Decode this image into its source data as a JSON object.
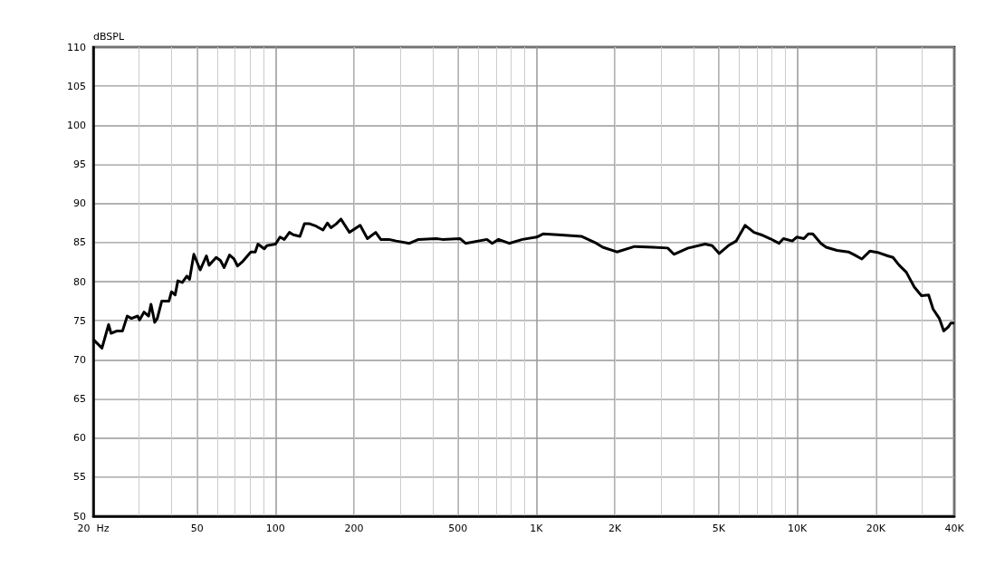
{
  "chart_data": {
    "type": "line",
    "ylabel": "dBSPL",
    "log": "x",
    "grid": true,
    "x": [
      20,
      21.6,
      22.9,
      23.4,
      24.7,
      25.9,
      27.0,
      28.0,
      29.6,
      30.1,
      31.3,
      32.6,
      33.3,
      34.4,
      35.2,
      36.6,
      39.0,
      39.9,
      41.2,
      42.2,
      43.9,
      45.7,
      46.8,
      48.6,
      51.4,
      54.3,
      55.6,
      59.2,
      61.5,
      63.5,
      66.6,
      69.3,
      71.5,
      74.9,
      80.4,
      83.6,
      85.6,
      90.5,
      92.6,
      100,
      104,
      108,
      113,
      117,
      124,
      129,
      135,
      143,
      152,
      158,
      163,
      171,
      178,
      192,
      211,
      225,
      242,
      253,
      272,
      290,
      326,
      353,
      413,
      436,
      510,
      535,
      646,
      677,
      716,
      786,
      884,
      1003,
      1060,
      1211,
      1486,
      1699,
      1796,
      2035,
      2381,
      2788,
      3186,
      3366,
      3817,
      4431,
      4720,
      5024,
      5438,
      5836,
      6313,
      6829,
      7273,
      7866,
      8511,
      8851,
      9573,
      9955,
      10603,
      11029,
      11470,
      12317,
      12910,
      14190,
      15717,
      16605,
      17683,
      18976,
      20530,
      22206,
      23279,
      24592,
      26187,
      28109,
      29937,
      31884,
      33163,
      35042,
      36446,
      37900,
      38800,
      40000
    ],
    "series": [
      {
        "color": "#000000",
        "values": [
          72.6,
          71.5,
          74.5,
          73.4,
          73.7,
          73.7,
          75.6,
          75.3,
          75.6,
          75.1,
          76.1,
          75.6,
          77.1,
          74.8,
          75.3,
          77.5,
          77.5,
          78.7,
          78.3,
          80.1,
          79.9,
          80.7,
          80.3,
          83.5,
          81.5,
          83.3,
          82.1,
          83.1,
          82.7,
          81.8,
          83.4,
          82.9,
          82.0,
          82.6,
          83.8,
          83.8,
          84.8,
          84.2,
          84.6,
          84.8,
          85.7,
          85.4,
          86.3,
          86.0,
          85.8,
          87.4,
          87.4,
          87.1,
          86.6,
          87.5,
          86.9,
          87.4,
          88.0,
          86.3,
          87.2,
          85.5,
          86.3,
          85.4,
          85.4,
          85.2,
          84.9,
          85.4,
          85.5,
          85.4,
          85.5,
          84.9,
          85.4,
          84.9,
          85.4,
          84.9,
          85.4,
          85.7,
          86.1,
          86.0,
          85.8,
          84.9,
          84.4,
          83.8,
          84.5,
          84.4,
          84.3,
          83.5,
          84.3,
          84.8,
          84.6,
          83.6,
          84.6,
          85.2,
          87.2,
          86.3,
          86.0,
          85.5,
          84.9,
          85.5,
          85.2,
          85.7,
          85.5,
          86.1,
          86.1,
          84.9,
          84.4,
          84.0,
          83.8,
          83.4,
          82.9,
          83.9,
          83.7,
          83.3,
          83.1,
          82.1,
          81.2,
          79.3,
          78.2,
          78.3,
          76.5,
          75.3,
          73.7,
          74.2,
          74.7,
          74.7
        ]
      }
    ],
    "xlim": [
      20,
      40000
    ],
    "xticks": [
      {
        "value": 20,
        "label": "20  Hz"
      },
      50,
      100,
      200,
      500,
      {
        "value": 1000,
        "label": "1K"
      },
      {
        "value": 2000,
        "label": "2K"
      },
      {
        "value": 5000,
        "label": "5K"
      },
      {
        "value": 10000,
        "label": "10K"
      },
      {
        "value": 20000,
        "label": "20K"
      },
      {
        "value": 40000,
        "label": "40K"
      }
    ],
    "ylim": [
      50,
      110
    ],
    "yticks": [
      50,
      55,
      60,
      65,
      70,
      75,
      80,
      85,
      90,
      95,
      100,
      105,
      110
    ]
  }
}
